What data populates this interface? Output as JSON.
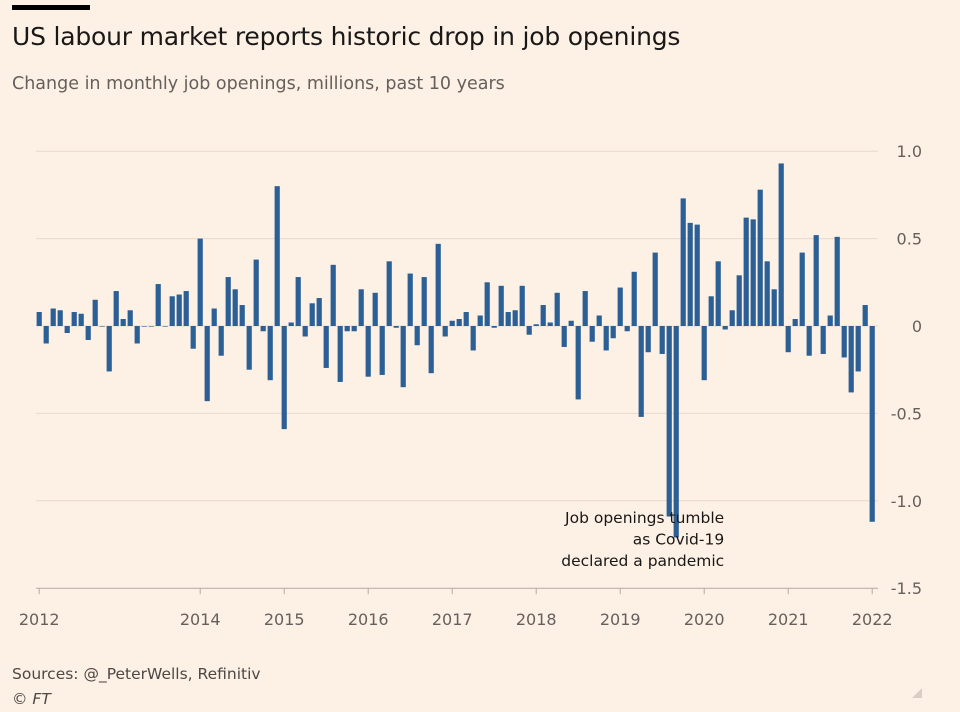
{
  "header": {
    "title": "US labour market reports historic drop in job openings",
    "subtitle": "Change in monthly job openings, millions, past 10 years"
  },
  "footer": {
    "sources": "Sources: @_PeterWells, Refinitiv",
    "copyright": "© FT"
  },
  "colors": {
    "background": "#fdf1e6",
    "bar": "#2c5f94",
    "grid": "#e6d9cc",
    "tick_text": "#66605c"
  },
  "chart_data": {
    "type": "bar",
    "title": "US labour market reports historic drop in job openings",
    "subtitle": "Change in monthly job openings, millions, past 10 years",
    "xlabel": "",
    "ylabel": "",
    "ylim": [
      -1.5,
      1.0
    ],
    "yticks": [
      1.0,
      0.5,
      0,
      -0.5,
      -1.0,
      -1.5
    ],
    "ytick_labels": [
      "1.0",
      "0.5",
      "0",
      "-0.5",
      "-1.0",
      "-1.5"
    ],
    "x_start": "2012-01",
    "xtick_labels": [
      "2012",
      "2014",
      "2015",
      "2016",
      "2017",
      "2018",
      "2019",
      "2020",
      "2021",
      "2022"
    ],
    "xtick_dates": [
      "2012-01",
      "2013-12",
      "2014-12",
      "2015-12",
      "2016-12",
      "2017-12",
      "2018-12",
      "2019-12",
      "2020-12",
      "2021-12"
    ],
    "y_axis_position": "right",
    "grid": true,
    "values": [
      0.08,
      -0.1,
      0.1,
      0.09,
      -0.04,
      0.08,
      0.07,
      -0.08,
      0.15,
      0.0,
      -0.26,
      0.2,
      0.04,
      0.09,
      -0.1,
      0.0,
      0.0,
      0.24,
      0.0,
      0.17,
      0.18,
      0.2,
      -0.13,
      0.5,
      -0.43,
      0.1,
      -0.17,
      0.28,
      0.21,
      0.12,
      -0.25,
      0.38,
      -0.03,
      -0.31,
      0.8,
      -0.59,
      0.02,
      0.28,
      -0.06,
      0.13,
      0.16,
      -0.24,
      0.35,
      -0.32,
      -0.03,
      -0.03,
      0.21,
      -0.29,
      0.19,
      -0.28,
      0.37,
      -0.01,
      -0.35,
      0.3,
      -0.11,
      0.28,
      -0.27,
      0.47,
      -0.06,
      0.03,
      0.04,
      0.08,
      -0.14,
      0.06,
      0.25,
      -0.01,
      0.23,
      0.08,
      0.09,
      0.23,
      -0.05,
      0.01,
      0.12,
      0.02,
      0.19,
      -0.12,
      0.03,
      -0.42,
      0.2,
      -0.09,
      0.06,
      -0.14,
      -0.07,
      0.22,
      -0.03,
      0.31,
      -0.52,
      -0.15,
      0.42,
      -0.16,
      -1.09,
      -1.21,
      0.73,
      0.59,
      0.58,
      -0.31,
      0.17,
      0.37,
      -0.02,
      0.09,
      0.29,
      0.62,
      0.61,
      0.78,
      0.37,
      0.21,
      0.93,
      -0.15,
      0.04,
      0.42,
      -0.17,
      0.52,
      -0.16,
      0.06,
      0.51,
      -0.18,
      -0.38,
      -0.26,
      0.12,
      -1.12
    ],
    "annotations": [
      {
        "text_lines": [
          "Job openings tumble",
          "as Covid-19",
          "declared a pandemic"
        ],
        "target": "2020-04"
      }
    ]
  }
}
